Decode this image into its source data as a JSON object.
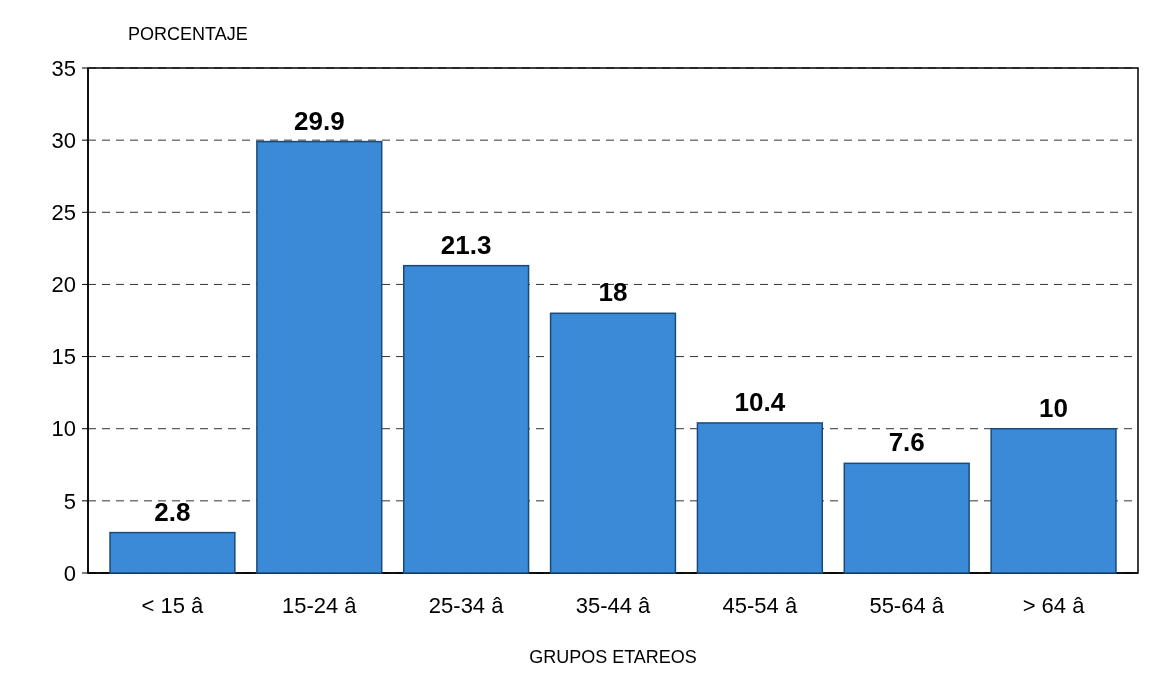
{
  "chart_data": {
    "type": "bar",
    "xlabel": "GRUPOS ETAREOS",
    "ylabel": "PORCENTAJE",
    "categories": [
      "< 15 â",
      "15-24 â",
      "25-34 â",
      "35-44 â",
      "45-54 â",
      "55-64 â",
      "> 64 â"
    ],
    "values": [
      2.8,
      29.9,
      21.3,
      18,
      10.4,
      7.6,
      10
    ],
    "color": "#3a8ad8",
    "ylim": [
      0,
      35
    ],
    "yticks": [
      0,
      5,
      10,
      15,
      20,
      25,
      30,
      35
    ],
    "grid": "y",
    "data_labels": true
  }
}
